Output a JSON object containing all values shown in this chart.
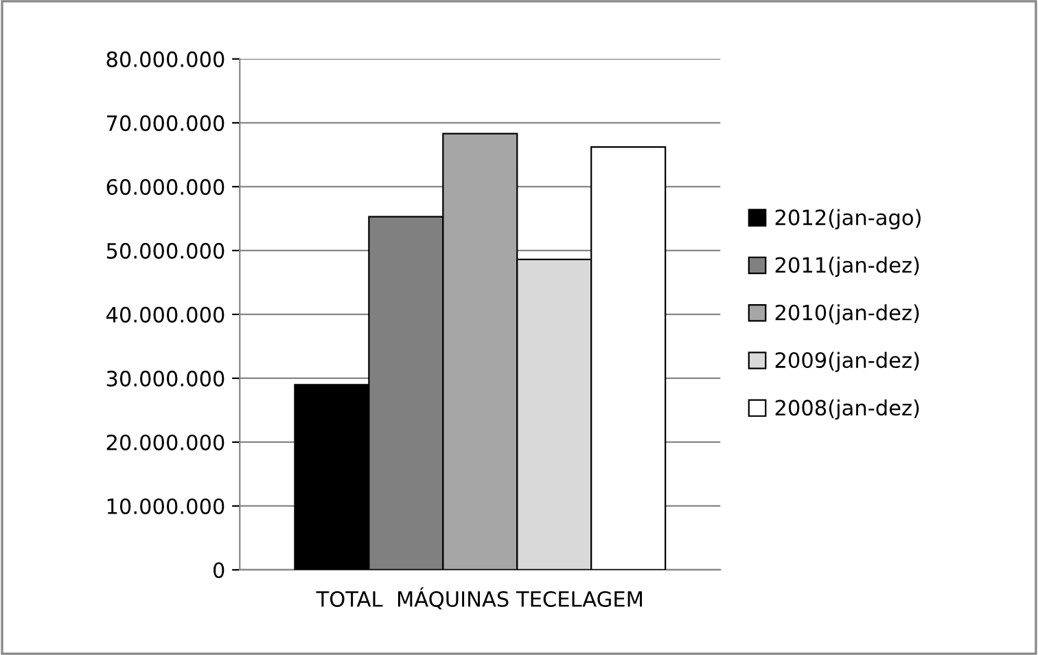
{
  "chart_data": {
    "type": "bar",
    "categories": [
      "TOTAL  MÁQUINAS TECELAGEM"
    ],
    "series": [
      {
        "name": "2012(jan-ago)",
        "color": "#000000",
        "values": [
          29000000
        ]
      },
      {
        "name": "2011(jan-dez)",
        "color": "#808080",
        "values": [
          55300000
        ]
      },
      {
        "name": "2010(jan-dez)",
        "color": "#a6a6a6",
        "values": [
          68300000
        ]
      },
      {
        "name": "2009(jan-dez)",
        "color": "#d9d9d9",
        "values": [
          48600000
        ]
      },
      {
        "name": "2008(jan-dez)",
        "color": "#ffffff",
        "values": [
          66200000
        ]
      }
    ],
    "ylim": [
      0,
      80000000
    ],
    "yticks": [
      0,
      {
        "value": 10000000,
        "label": "10.000.000"
      },
      {
        "value": 20000000,
        "label": "20.000.000"
      },
      {
        "value": 30000000,
        "label": "30.000.000"
      },
      {
        "value": 40000000,
        "label": "40.000.000"
      },
      {
        "value": 50000000,
        "label": "50.000.000"
      },
      {
        "value": 60000000,
        "label": "60.000.000"
      },
      {
        "value": 70000000,
        "label": "70.000.000"
      },
      {
        "value": 80000000,
        "label": "80.000.000"
      }
    ],
    "grid": "y",
    "legend": "right"
  }
}
